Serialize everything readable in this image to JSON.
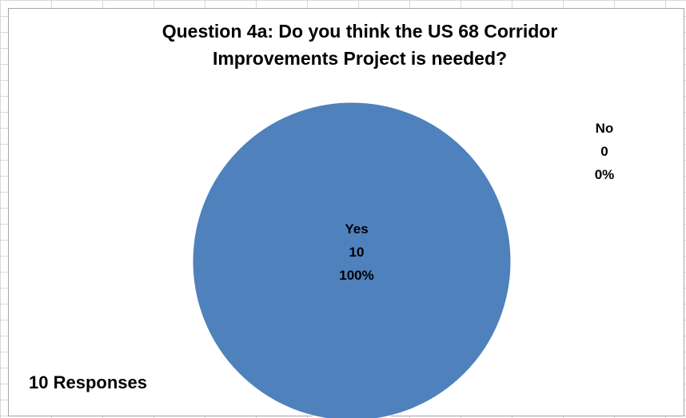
{
  "chart_data": {
    "type": "pie",
    "title": {
      "line1": "Question 4a: Do you think the US 68 Corridor",
      "line2": "Improvements Project is needed?"
    },
    "categories": [
      "Yes",
      "No"
    ],
    "values": [
      10,
      0
    ],
    "percents": [
      "100%",
      "0%"
    ],
    "colors": [
      "#4F81BD",
      "#C0504D"
    ],
    "labels": [
      {
        "name": "Yes",
        "value": "10",
        "percent": "100%"
      },
      {
        "name": "No",
        "value": "0",
        "percent": "0%"
      }
    ],
    "legend": "none"
  },
  "footer": {
    "responses": "10 Responses"
  }
}
